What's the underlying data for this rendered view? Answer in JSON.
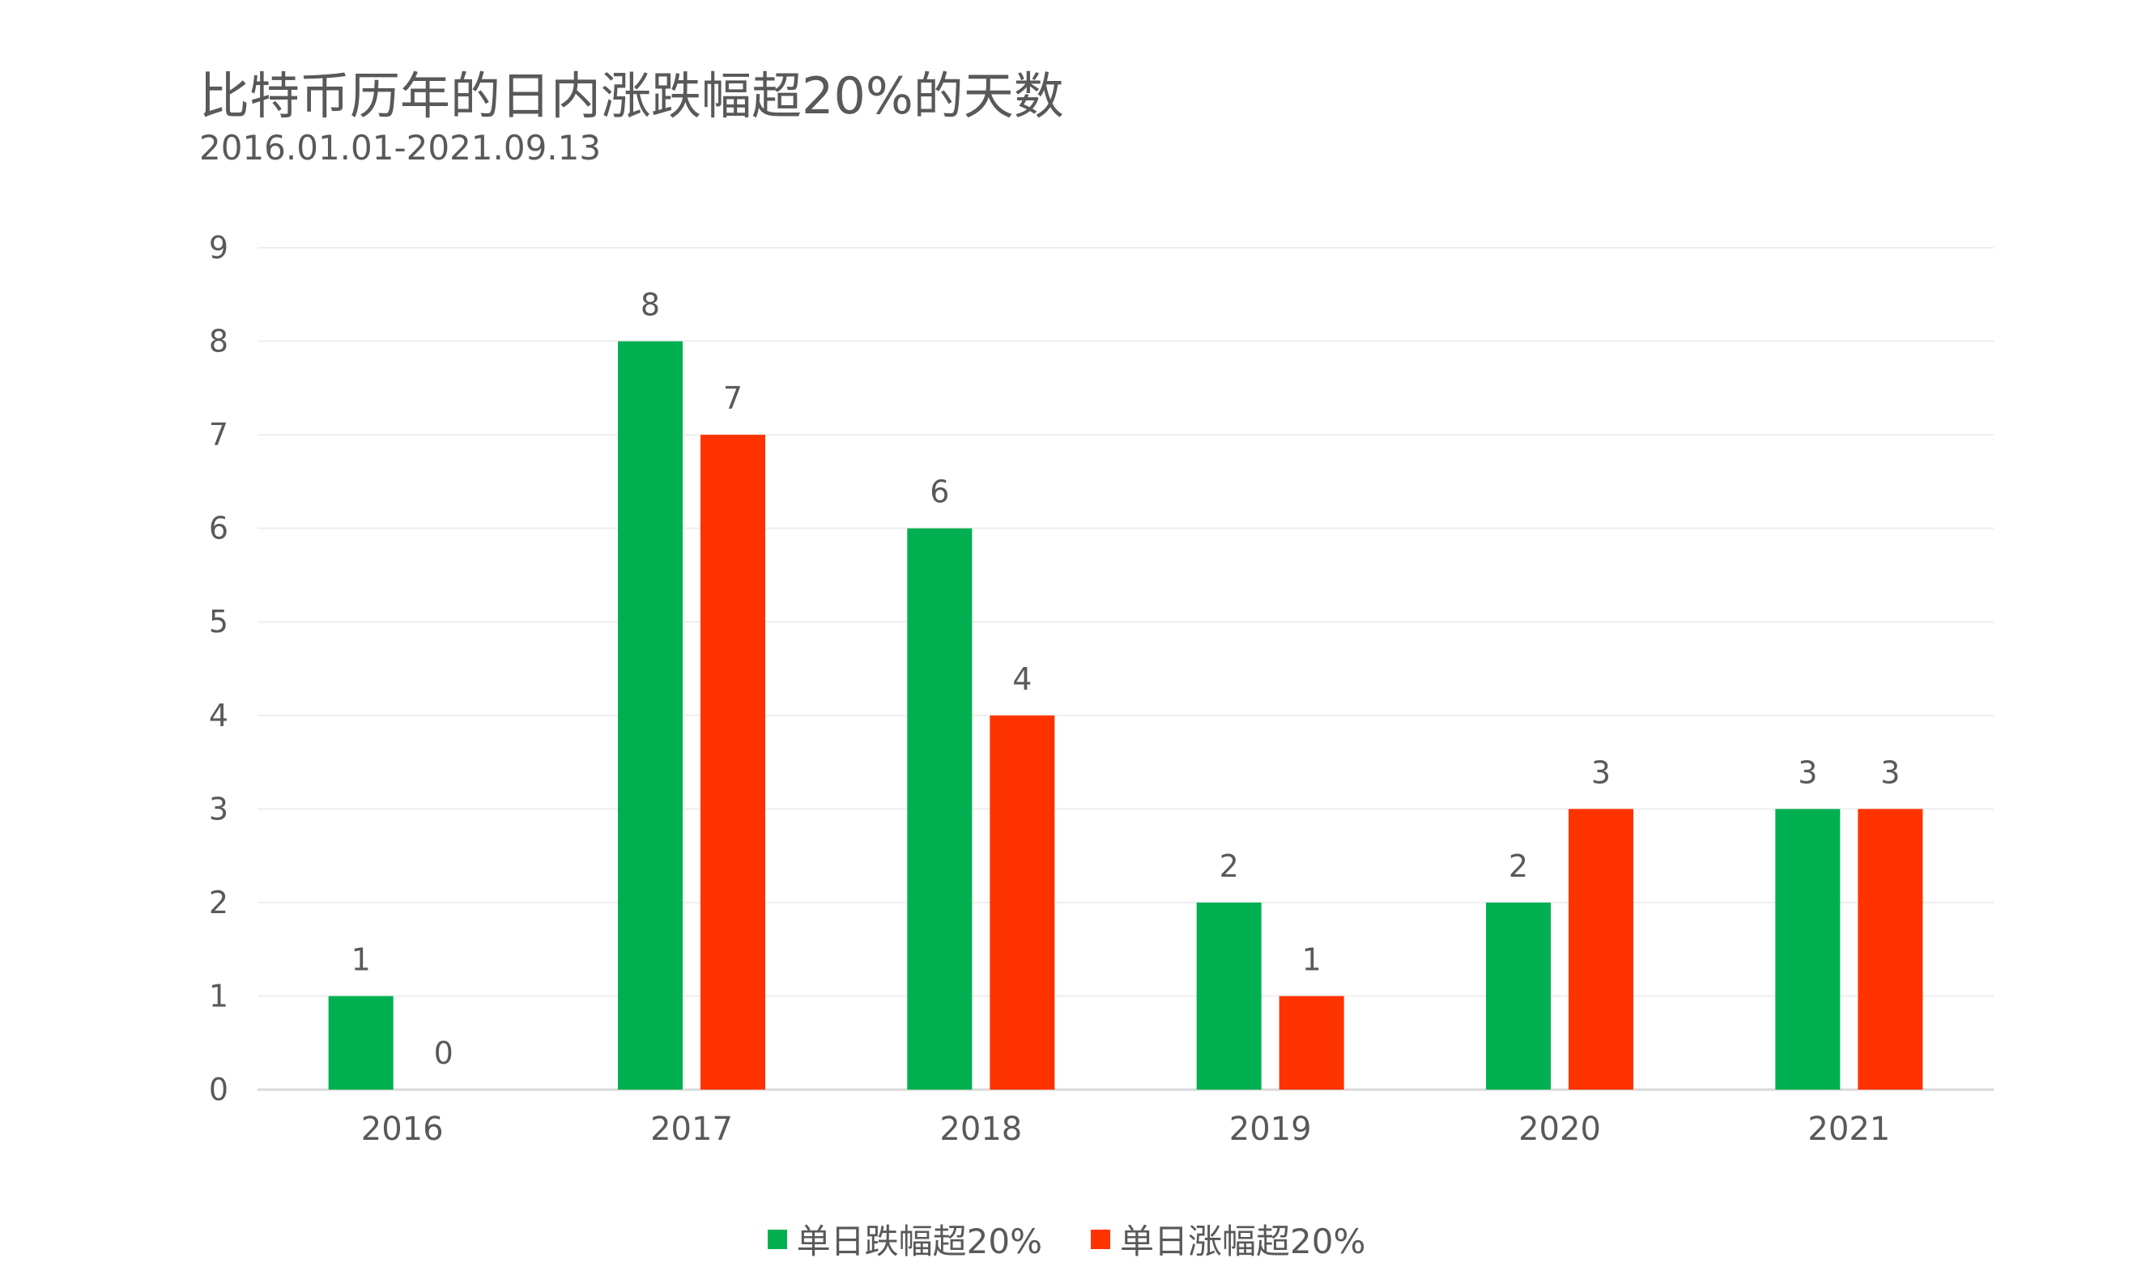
{
  "title": "比特币历年的日内涨跌幅超20%的天数",
  "subtitle": "2016.01.01-2021.09.13",
  "colors": {
    "fall": "#00b050",
    "rise": "#ff3300",
    "grid": "#eeeeee",
    "axis": "#d9d9d9",
    "text": "#595959"
  },
  "chart_data": {
    "type": "bar",
    "title": "比特币历年的日内涨跌幅超20%的天数",
    "subtitle": "2016.01.01-2021.09.13",
    "categories": [
      "2016",
      "2017",
      "2018",
      "2019",
      "2020",
      "2021"
    ],
    "series": [
      {
        "name": "单日跌幅超20%",
        "color": "#00b050",
        "values": [
          1,
          8,
          6,
          2,
          2,
          3
        ]
      },
      {
        "name": "单日涨幅超20%",
        "color": "#ff3300",
        "values": [
          0,
          7,
          4,
          1,
          3,
          3
        ]
      }
    ],
    "ylim": [
      0,
      9
    ],
    "yticks": [
      "0",
      "1",
      "2",
      "3",
      "4",
      "5",
      "6",
      "7",
      "8",
      "9"
    ],
    "grid": true,
    "legend_position": "bottom-center",
    "data_labels": true
  }
}
